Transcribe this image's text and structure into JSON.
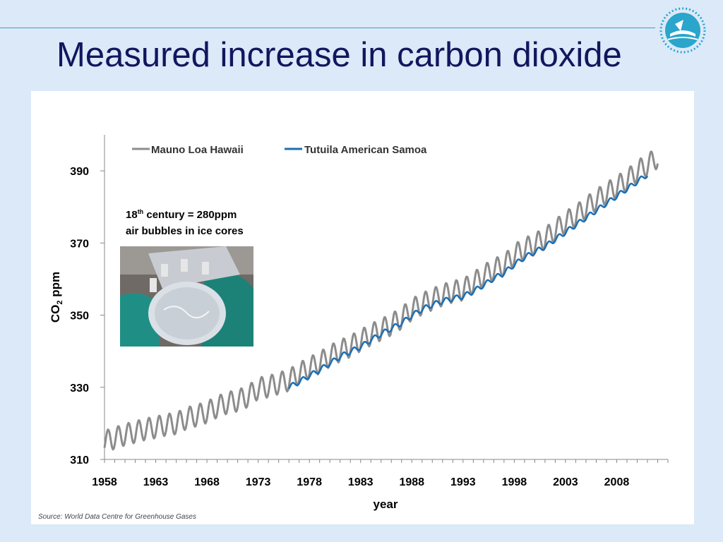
{
  "slide": {
    "title": "Measured increase in carbon dioxide"
  },
  "annotation": {
    "prefix": "18",
    "superscript": "th",
    "line1_rest": " century = 280ppm",
    "line2": "air bubbles in ice cores"
  },
  "source": "Source: World Data Centre for Greenhouse Gases",
  "colors": {
    "title": "#12165e",
    "background": "#dbe9f8",
    "rule": "#3aa0c8",
    "mauna_loa": "#8c8c8c",
    "tutuila": "#1b6fb5"
  },
  "chart_data": {
    "type": "line",
    "xlabel": "year",
    "ylabel_main": "CO",
    "ylabel_sub": "2",
    "ylabel_unit": " ppm",
    "xlim": [
      1958,
      2013
    ],
    "ylim": [
      310,
      400
    ],
    "xticks": [
      1958,
      1963,
      1968,
      1973,
      1978,
      1983,
      1988,
      1993,
      1998,
      2003,
      2008
    ],
    "yticks": [
      310,
      330,
      350,
      370,
      390
    ],
    "legend_position": "top-left",
    "grid": false,
    "series": [
      {
        "name": "Mauno Loa Hawaii",
        "color": "#8c8c8c",
        "x": [
          1958,
          1959,
          1960,
          1961,
          1962,
          1963,
          1964,
          1965,
          1966,
          1967,
          1968,
          1969,
          1970,
          1971,
          1972,
          1973,
          1974,
          1975,
          1976,
          1977,
          1978,
          1979,
          1980,
          1981,
          1982,
          1983,
          1984,
          1985,
          1986,
          1987,
          1988,
          1989,
          1990,
          1991,
          1992,
          1993,
          1994,
          1995,
          1996,
          1997,
          1998,
          1999,
          2000,
          2001,
          2002,
          2003,
          2004,
          2005,
          2006,
          2007,
          2008,
          2009,
          2010,
          2011,
          2012
        ],
        "values": [
          315.0,
          315.9,
          316.9,
          317.6,
          318.4,
          318.9,
          319.6,
          320.0,
          321.4,
          322.2,
          323.1,
          324.6,
          325.7,
          326.3,
          327.5,
          329.7,
          330.2,
          331.1,
          332.0,
          333.8,
          335.4,
          336.8,
          338.7,
          340.1,
          341.4,
          343.0,
          344.6,
          346.0,
          347.4,
          349.2,
          351.6,
          353.1,
          354.4,
          355.6,
          356.5,
          357.1,
          358.9,
          360.9,
          362.7,
          363.8,
          366.7,
          368.4,
          369.7,
          371.3,
          373.5,
          375.8,
          377.5,
          379.8,
          381.9,
          383.8,
          385.6,
          387.4,
          389.9,
          391.6,
          393.8
        ],
        "seasonal_amplitude_ppm": 3.0
      },
      {
        "name": "Tutuila American Samoa",
        "color": "#1b6fb5",
        "x": [
          1976,
          1977,
          1978,
          1979,
          1980,
          1981,
          1982,
          1983,
          1984,
          1985,
          1986,
          1987,
          1988,
          1989,
          1990,
          1991,
          1992,
          1993,
          1994,
          1995,
          1996,
          1997,
          1998,
          1999,
          2000,
          2001,
          2002,
          2003,
          2004,
          2005,
          2006,
          2007,
          2008,
          2009,
          2010,
          2011
        ],
        "values": [
          330.0,
          331.5,
          333.2,
          334.8,
          336.6,
          338.5,
          339.9,
          341.2,
          343.1,
          344.8,
          346.3,
          347.8,
          349.9,
          351.6,
          352.9,
          353.9,
          354.6,
          355.2,
          356.6,
          358.3,
          360.2,
          361.7,
          364.0,
          366.0,
          367.5,
          369.0,
          371.0,
          373.0,
          375.0,
          377.0,
          379.0,
          381.0,
          383.0,
          385.0,
          387.0,
          389.0
        ],
        "seasonal_amplitude_ppm": 0.7
      }
    ]
  }
}
